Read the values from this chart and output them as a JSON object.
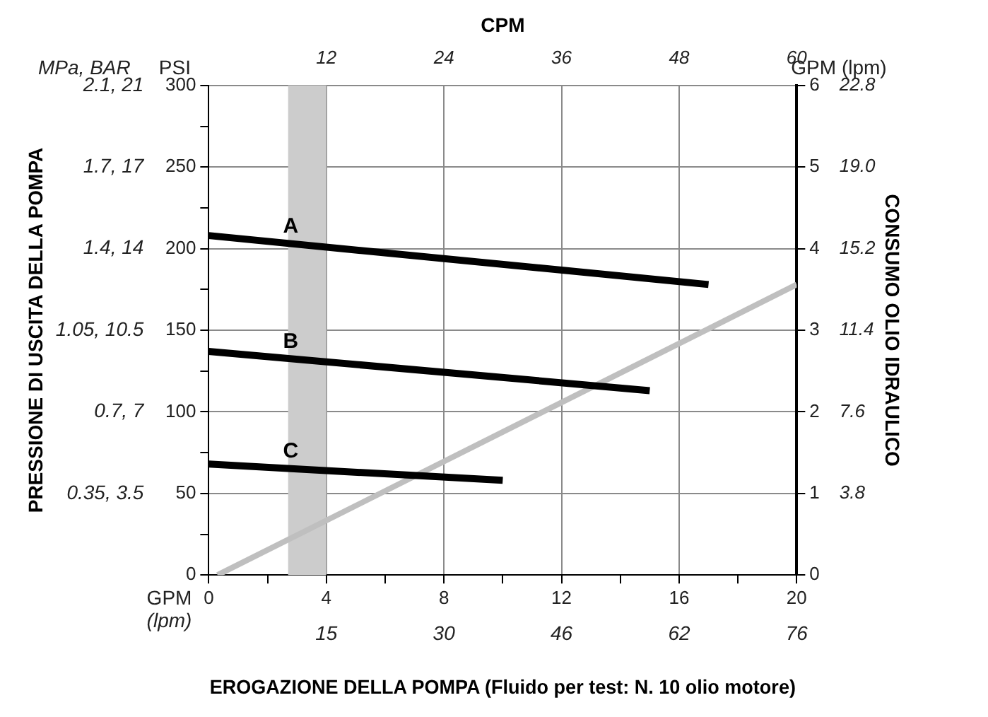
{
  "chart_data": {
    "type": "line",
    "xlabel": "EROGAZIONE DELLA POMPA (Fluido per test: N. 10 olio motore)",
    "y2label": "CONSUMO OLIO IDRAULICO",
    "x2label": "CPM",
    "annotations": [
      "MPa, BAR",
      "PSI",
      "GPM",
      "(lpm)",
      "GPM (lpm)",
      "0.35, 3.5",
      "0.7, 7",
      "1.05, 10.5",
      "1.4, 14",
      "1.7, 17",
      "2.1, 21",
      "15",
      "30",
      "46",
      "62",
      "76",
      "PRESSIONE DI USCITA DELLA POMPA"
    ],
    "series": [
      {
        "name": "A",
        "color": "#000000",
        "x": [
          0,
          17
        ],
        "values": [
          208,
          178
        ]
      },
      {
        "name": "B",
        "color": "#000000",
        "x": [
          0,
          15
        ],
        "values": [
          137,
          113
        ]
      },
      {
        "name": "C",
        "color": "#000000",
        "x": [
          0,
          10
        ],
        "values": [
          68,
          58
        ]
      },
      {
        "color": "#bfbfbf",
        "axis": "y2",
        "x": [
          0.3,
          20
        ],
        "values": [
          0,
          3.56
        ]
      }
    ],
    "bands": [
      {
        "axis": "x",
        "from": 2.7,
        "to": 4,
        "color": "#cccccc"
      }
    ],
    "xlim": [
      0,
      20
    ],
    "xticks": [
      0,
      {
        "value": 2,
        "label": null
      },
      4,
      {
        "value": 6,
        "label": null
      },
      8,
      {
        "value": 10,
        "label": null
      },
      12,
      {
        "value": 14,
        "label": null
      },
      16,
      {
        "value": 18,
        "label": null
      },
      20
    ],
    "x2lim": [
      0,
      60
    ],
    "x2ticks": [
      12,
      24,
      36,
      48,
      60
    ],
    "ylim": [
      0,
      300
    ],
    "yticks": [
      0,
      {
        "value": 25,
        "label": null
      },
      50,
      {
        "value": 75,
        "label": null
      },
      100,
      {
        "value": 125,
        "label": null
      },
      150,
      {
        "value": 175,
        "label": null
      },
      200,
      {
        "value": 225,
        "label": null
      },
      250,
      {
        "value": 275,
        "label": null
      },
      300
    ],
    "y2lim": [
      0,
      6
    ],
    "y2ticks": [
      0,
      1,
      2,
      3,
      4,
      5,
      6
    ],
    "y3lim": [
      0,
      22.8
    ],
    "y3ticks": [
      3.8,
      7.6,
      11.4,
      15.2,
      {
        "value": 19,
        "label": "19.0"
      },
      22.8
    ],
    "grid": true,
    "legend": false,
    "marker": "none",
    "line_style": "solid"
  }
}
